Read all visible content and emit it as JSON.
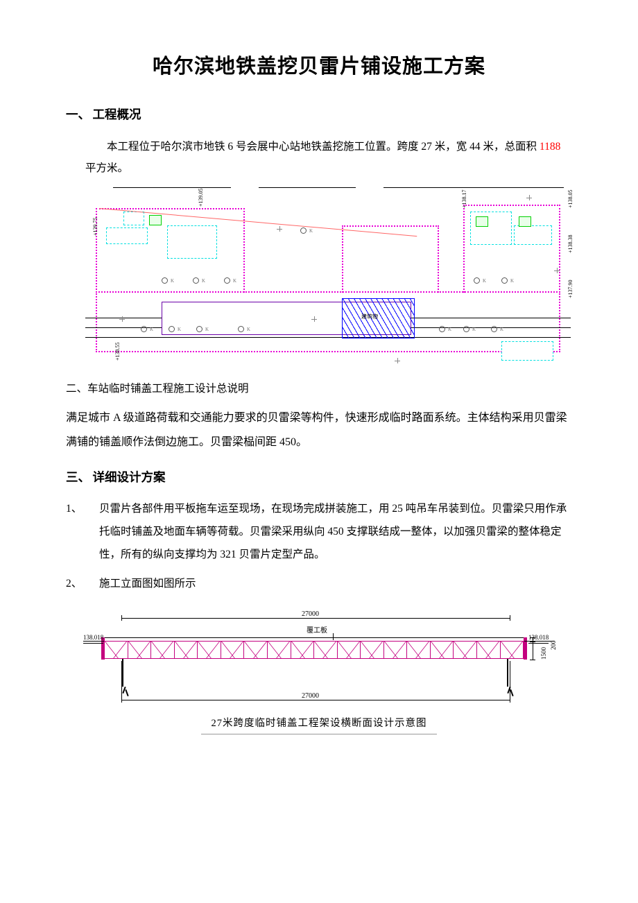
{
  "title": "哈尔滨地铁盖挖贝雷片铺设施工方案",
  "s1": {
    "heading_num": "一、",
    "heading_text": "工程概况",
    "p1a": "本工程位于哈尔滨市地铁 6 号会展中心站地铁盖挖施工位置。跨度 27 米，宽 44 米，总面积 ",
    "p1_red": "1188",
    "p1b": " 平方米。"
  },
  "siteplan": {
    "colors": {
      "magenta": "#e800d6",
      "cyan": "#00e0e0",
      "green": "#00d000",
      "blue": "#0000ff",
      "black": "#000000",
      "grey": "#808080"
    },
    "hatch_label": "建筑物",
    "elev_labels": [
      "+139.75",
      "+139.05",
      "+138.17",
      "+138.05",
      "+138.38",
      "+137.90",
      "+138.55"
    ]
  },
  "s2": {
    "heading": "二、车站临时铺盖工程施工设计总说明",
    "body": "满足城市 A 级道路荷载和交通能力要求的贝雷梁等构件，快速形成临时路面系统。主体结构采用贝雷梁满铺的铺盖顺作法倒边施工。贝雷梁榀间距 450。"
  },
  "s3": {
    "heading_num": "三、",
    "heading_text": "详细设计方案",
    "item1_num": "1、",
    "item1": "贝雷片各部件用平板拖车运至现场，在现场完成拼装施工，用 25 吨吊车吊装到位。贝雷梁只用作承托临时铺盖及地面车辆等荷载。贝雷梁采用纵向 450 支撑联结成一整体，以加强贝雷梁的整体稳定性，所有的纵向支撑均为 321 贝雷片定型产品。",
    "item2_num": "2、",
    "item2": "施工立面图如图所示"
  },
  "elevation": {
    "span_top": "27000",
    "span_bottom": "27000",
    "cover_label": "覆工板",
    "left_level": "138.018",
    "right_level": "138.018",
    "h_truss": "1500",
    "h_deck": "200",
    "truss_color": "#c4007f",
    "caption": "27米跨度临时铺盖工程架设横断面设计示意图",
    "truss_bays": 18
  }
}
